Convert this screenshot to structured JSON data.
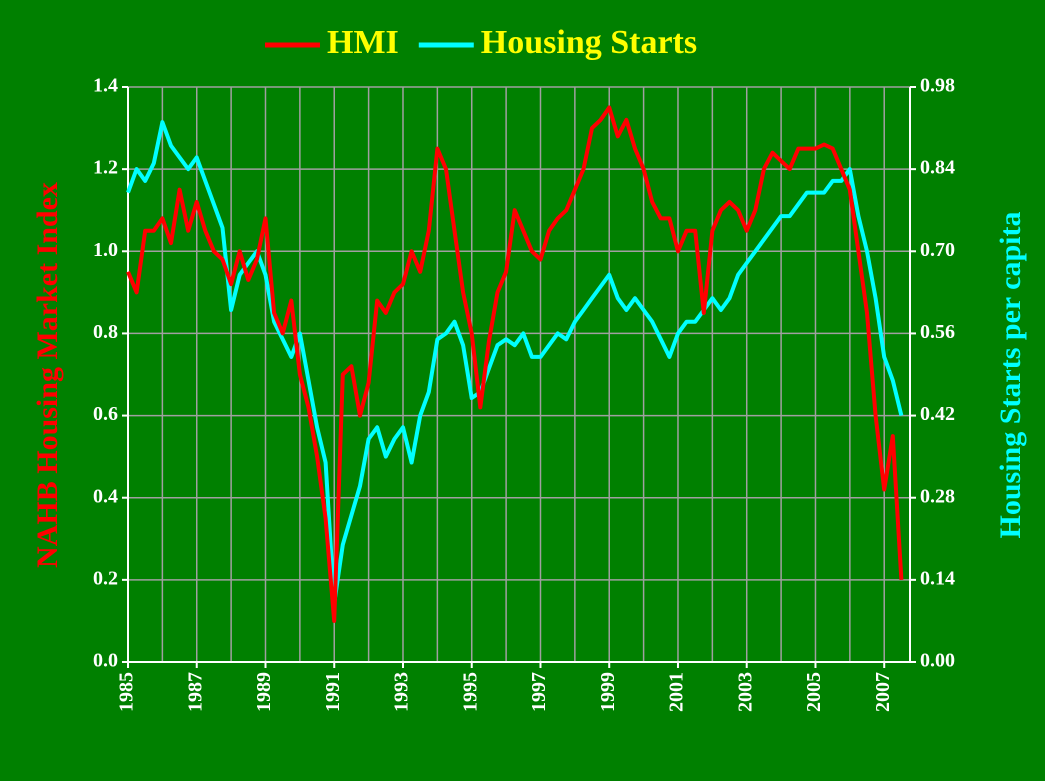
{
  "chart_data": {
    "type": "line",
    "ylabel": "NAHB Housing Market Index",
    "y2label": "Housing Starts per capita",
    "xlim": [
      1985,
      2007.75
    ],
    "xticks": [
      1985,
      1987,
      1989,
      1991,
      1993,
      1995,
      1997,
      1999,
      2001,
      2003,
      2005,
      2007
    ],
    "xgrid": [
      1985,
      1986,
      1987,
      1988,
      1989,
      1990,
      1991,
      1992,
      1993,
      1994,
      1995,
      1996,
      1997,
      1998,
      1999,
      2000,
      2001,
      2002,
      2003,
      2004,
      2005,
      2006,
      2007
    ],
    "ylim": [
      0,
      1.4
    ],
    "yticks": [
      {
        "value": 0,
        "label": "0.0"
      },
      {
        "value": 0.2,
        "label": "0.2"
      },
      {
        "value": 0.4,
        "label": "0.4"
      },
      {
        "value": 0.6,
        "label": "0.6"
      },
      {
        "value": 0.8,
        "label": "0.8"
      },
      {
        "value": 1.0,
        "label": "1.0"
      },
      {
        "value": 1.2,
        "label": "1.2"
      },
      {
        "value": 1.4,
        "label": "1.4"
      }
    ],
    "y2lim": [
      0,
      0.98
    ],
    "y2ticks": [
      {
        "value": 0,
        "label": "0.00"
      },
      {
        "value": 0.14,
        "label": "0.14"
      },
      {
        "value": 0.28,
        "label": "0.28"
      },
      {
        "value": 0.42,
        "label": "0.42"
      },
      {
        "value": 0.56,
        "label": "0.56"
      },
      {
        "value": 0.7,
        "label": "0.70"
      },
      {
        "value": 0.84,
        "label": "0.84"
      },
      {
        "value": 0.98,
        "label": "0.98"
      }
    ],
    "grid": true,
    "x": [
      1985,
      1985.25,
      1985.5,
      1985.75,
      1986,
      1986.25,
      1986.5,
      1986.75,
      1987,
      1987.25,
      1987.5,
      1987.75,
      1988,
      1988.25,
      1988.5,
      1988.75,
      1989,
      1989.25,
      1989.5,
      1989.75,
      1990,
      1990.25,
      1990.5,
      1990.75,
      1991,
      1991.25,
      1991.5,
      1991.75,
      1992,
      1992.25,
      1992.5,
      1992.75,
      1993,
      1993.25,
      1993.5,
      1993.75,
      1994,
      1994.25,
      1994.5,
      1994.75,
      1995,
      1995.25,
      1995.5,
      1995.75,
      1996,
      1996.25,
      1996.5,
      1996.75,
      1997,
      1997.25,
      1997.5,
      1997.75,
      1998,
      1998.25,
      1998.5,
      1998.75,
      1999,
      1999.25,
      1999.5,
      1999.75,
      2000,
      2000.25,
      2000.5,
      2000.75,
      2001,
      2001.25,
      2001.5,
      2001.75,
      2002,
      2002.25,
      2002.5,
      2002.75,
      2003,
      2003.25,
      2003.5,
      2003.75,
      2004,
      2004.25,
      2004.5,
      2004.75,
      2005,
      2005.25,
      2005.5,
      2005.75,
      2006,
      2006.25,
      2006.5,
      2006.75,
      2007,
      2007.25,
      2007.5
    ],
    "series": [
      {
        "name": "HMI",
        "color": "#ff0000",
        "values": [
          0.95,
          0.9,
          1.05,
          1.05,
          1.08,
          1.02,
          1.15,
          1.05,
          1.12,
          1.05,
          1.0,
          0.98,
          0.92,
          1.0,
          0.93,
          0.98,
          1.08,
          0.85,
          0.8,
          0.88,
          0.7,
          0.62,
          0.5,
          0.35,
          0.1,
          0.7,
          0.72,
          0.6,
          0.68,
          0.88,
          0.85,
          0.9,
          0.92,
          1.0,
          0.95,
          1.05,
          1.25,
          1.2,
          1.05,
          0.9,
          0.8,
          0.62,
          0.78,
          0.9,
          0.95,
          1.1,
          1.05,
          1.0,
          0.98,
          1.05,
          1.08,
          1.1,
          1.15,
          1.2,
          1.3,
          1.32,
          1.35,
          1.28,
          1.32,
          1.25,
          1.2,
          1.12,
          1.08,
          1.08,
          1.0,
          1.05,
          1.05,
          0.85,
          1.05,
          1.1,
          1.12,
          1.1,
          1.05,
          1.1,
          1.2,
          1.24,
          1.22,
          1.2,
          1.25,
          1.25,
          1.25,
          1.26,
          1.25,
          1.2,
          1.15,
          1.0,
          0.85,
          0.6,
          0.42,
          0.55,
          0.2
        ]
      },
      {
        "name": "Housing Starts",
        "color": "#00ffff",
        "axis": "y2",
        "values": [
          0.8,
          0.84,
          0.82,
          0.85,
          0.92,
          0.88,
          0.86,
          0.84,
          0.86,
          0.82,
          0.78,
          0.74,
          0.6,
          0.66,
          0.68,
          0.7,
          0.66,
          0.58,
          0.55,
          0.52,
          0.56,
          0.48,
          0.4,
          0.34,
          0.1,
          0.2,
          0.25,
          0.3,
          0.38,
          0.4,
          0.35,
          0.38,
          0.4,
          0.34,
          0.42,
          0.46,
          0.55,
          0.56,
          0.58,
          0.54,
          0.45,
          0.46,
          0.5,
          0.54,
          0.55,
          0.54,
          0.56,
          0.52,
          0.52,
          0.54,
          0.56,
          0.55,
          0.58,
          0.6,
          0.62,
          0.64,
          0.66,
          0.62,
          0.6,
          0.62,
          0.6,
          0.58,
          0.55,
          0.52,
          0.56,
          0.58,
          0.58,
          0.6,
          0.62,
          0.6,
          0.62,
          0.66,
          0.68,
          0.7,
          0.72,
          0.74,
          0.76,
          0.76,
          0.78,
          0.8,
          0.8,
          0.8,
          0.82,
          0.82,
          0.84,
          0.76,
          0.7,
          0.62,
          0.52,
          0.48,
          0.42
        ]
      }
    ]
  }
}
